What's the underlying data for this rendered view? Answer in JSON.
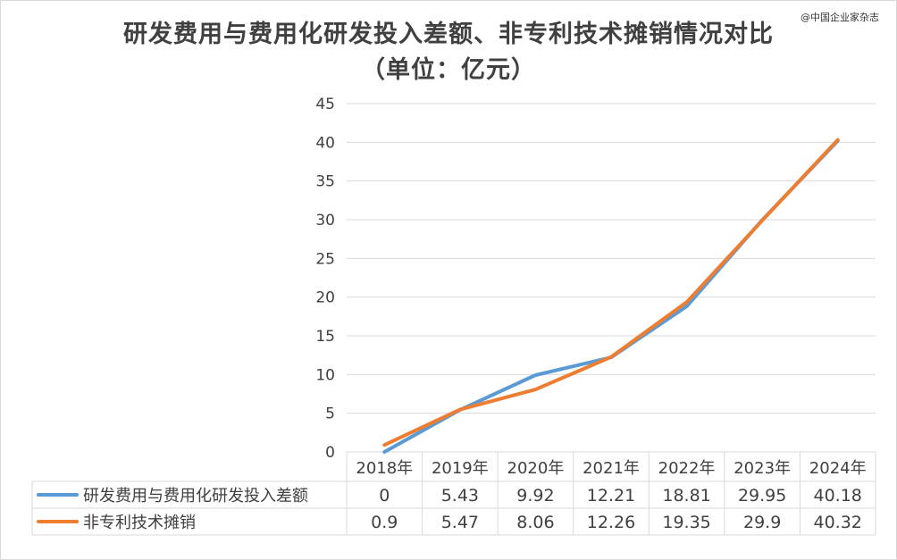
{
  "chart_data": {
    "type": "line",
    "title": "研发费用与费用化研发投入差额、非专利技术摊销情况对比",
    "subtitle": "（单位：亿元）",
    "categories": [
      "2018年",
      "2019年",
      "2020年",
      "2021年",
      "2022年",
      "2023年",
      "2024年"
    ],
    "series": [
      {
        "name": "研发费用与费用化研发投入差额",
        "color": "#5b9bd5",
        "values": [
          0,
          5.43,
          9.92,
          12.21,
          18.81,
          29.95,
          40.18
        ],
        "labels": [
          "0",
          "5.43",
          "9.92",
          "12.21",
          "18.81",
          "29.95",
          "40.18"
        ]
      },
      {
        "name": "非专利技术摊销",
        "color": "#ed7d31",
        "values": [
          0.9,
          5.47,
          8.06,
          12.26,
          19.35,
          29.9,
          40.32
        ],
        "labels": [
          "0.9",
          "5.47",
          "8.06",
          "12.26",
          "19.35",
          "29.9",
          "40.32"
        ]
      }
    ],
    "ylim": [
      0,
      45
    ],
    "yticks": [
      0,
      5,
      10,
      15,
      20,
      25,
      30,
      35,
      40,
      45
    ],
    "grid": true,
    "legend": "data-table"
  },
  "watermark": "@中国企业家杂志"
}
